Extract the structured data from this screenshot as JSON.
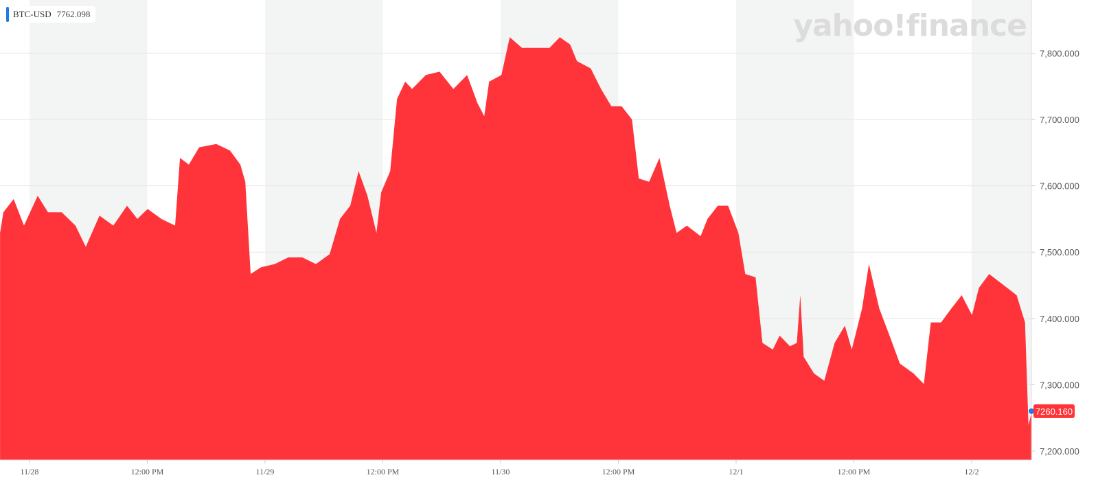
{
  "legend": {
    "symbol": "BTC-USD",
    "value": "7762.098",
    "color": "#1b7ae6"
  },
  "watermark": "yahoo!finance",
  "chart_data": {
    "type": "area",
    "title": "",
    "xlabel": "",
    "ylabel": "",
    "ylim": [
      7190,
      7880
    ],
    "y_axis_position": "right",
    "yticks": [
      7200,
      7300,
      7400,
      7500,
      7600,
      7700,
      7800
    ],
    "ytick_labels": [
      "7,200.000",
      "7,300.000",
      "7,400.000",
      "7,500.000",
      "7,600.000",
      "7,700.000",
      "7,800.000"
    ],
    "xticks": [
      "2019-11-28T00:00",
      "2019-11-28T12:00",
      "2019-11-29T00:00",
      "2019-11-29T12:00",
      "2019-11-30T00:00",
      "2019-11-30T12:00",
      "2019-12-01T00:00",
      "2019-12-01T12:00",
      "2019-12-02T00:00"
    ],
    "xtick_labels": [
      "11/28",
      "12:00 PM",
      "11/29",
      "12:00 PM",
      "11/30",
      "12:00 PM",
      "12/1",
      "12:00 PM",
      "12/2"
    ],
    "grid": true,
    "fill_color": "#ff333a",
    "last_price_label": "7260.160",
    "last_price": 7260.16,
    "series": [
      {
        "x": [
          "2019-11-27T21:00",
          "2019-11-27T21:20",
          "2019-11-27T22:23",
          "2019-11-27T23:26",
          "2019-11-28T00:50",
          "2019-11-28T01:53",
          "2019-11-28T03:17",
          "2019-11-28T04:41",
          "2019-11-28T05:44",
          "2019-11-28T07:08",
          "2019-11-28T08:32",
          "2019-11-28T09:56",
          "2019-11-28T10:59",
          "2019-11-28T12:02",
          "2019-11-28T13:26",
          "2019-11-28T14:50",
          "2019-11-28T15:20",
          "2019-11-28T16:14",
          "2019-11-28T17:17",
          "2019-11-28T19:02",
          "2019-11-28T20:26",
          "2019-11-28T21:29",
          "2019-11-28T21:59",
          "2019-11-28T22:32",
          "2019-11-28T23:35",
          "2019-11-29T00:59",
          "2019-11-29T02:23",
          "2019-11-29T03:47",
          "2019-11-29T05:11",
          "2019-11-29T06:35",
          "2019-11-29T07:38",
          "2019-11-29T08:41",
          "2019-11-29T09:32",
          "2019-11-29T10:26",
          "2019-11-29T11:21",
          "2019-11-29T11:50",
          "2019-11-29T12:45",
          "2019-11-29T13:27",
          "2019-11-29T14:17",
          "2019-11-29T14:59",
          "2019-11-29T16:23",
          "2019-11-29T17:47",
          "2019-11-29T19:11",
          "2019-11-29T20:35",
          "2019-11-29T21:38",
          "2019-11-29T22:20",
          "2019-11-29T22:50",
          "2019-11-30T00:05",
          "2019-11-30T00:56",
          "2019-11-30T02:11",
          "2019-11-30T03:35",
          "2019-11-30T04:59",
          "2019-11-30T06:02",
          "2019-11-30T07:05",
          "2019-11-30T07:47",
          "2019-11-30T09:11",
          "2019-11-30T10:14",
          "2019-11-30T11:17",
          "2019-11-30T12:20",
          "2019-11-30T13:23",
          "2019-11-30T14:05",
          "2019-11-30T15:08",
          "2019-11-30T16:11",
          "2019-11-30T17:14",
          "2019-11-30T17:56",
          "2019-11-30T18:59",
          "2019-11-30T20:23",
          "2019-11-30T21:05",
          "2019-11-30T22:08",
          "2019-11-30T23:11",
          "2019-12-01T00:14",
          "2019-12-01T00:56",
          "2019-12-01T01:59",
          "2019-12-01T02:41",
          "2019-12-01T03:44",
          "2019-12-01T04:26",
          "2019-12-01T05:29",
          "2019-12-01T06:11",
          "2019-12-01T06:32",
          "2019-12-01T06:53",
          "2019-12-01T07:56",
          "2019-12-01T08:59",
          "2019-12-01T10:02",
          "2019-12-01T11:05",
          "2019-12-01T11:47",
          "2019-12-01T12:50",
          "2019-12-01T13:32",
          "2019-12-01T14:35",
          "2019-12-01T15:38",
          "2019-12-01T16:41",
          "2019-12-01T18:05",
          "2019-12-01T19:08",
          "2019-12-01T19:50",
          "2019-12-01T20:53",
          "2019-12-01T21:56",
          "2019-12-01T22:59",
          "2019-12-02T00:02",
          "2019-12-02T00:44",
          "2019-12-02T01:47",
          "2019-12-02T03:11",
          "2019-12-02T04:35",
          "2019-12-02T05:26",
          "2019-12-02T05:47",
          "2019-12-02T06:08"
        ],
        "y": [
          7529,
          7560,
          7580,
          7540,
          7585,
          7560,
          7560,
          7540,
          7508,
          7555,
          7540,
          7570,
          7550,
          7565,
          7550,
          7540,
          7642,
          7632,
          7658,
          7663,
          7653,
          7632,
          7606,
          7467,
          7477,
          7482,
          7492,
          7492,
          7482,
          7497,
          7550,
          7570,
          7622,
          7585,
          7529,
          7590,
          7622,
          7731,
          7757,
          7746,
          7767,
          7772,
          7746,
          7767,
          7725,
          7705,
          7757,
          7767,
          7824,
          7808,
          7808,
          7808,
          7824,
          7813,
          7788,
          7777,
          7746,
          7720,
          7720,
          7700,
          7611,
          7606,
          7642,
          7570,
          7529,
          7540,
          7524,
          7550,
          7570,
          7570,
          7529,
          7467,
          7462,
          7363,
          7353,
          7374,
          7358,
          7363,
          7435,
          7342,
          7317,
          7306,
          7363,
          7389,
          7353,
          7415,
          7482,
          7415,
          7374,
          7332,
          7317,
          7301,
          7394,
          7394,
          7415,
          7435,
          7405,
          7446,
          7467,
          7451,
          7435,
          7394,
          7239,
          7260
        ]
      }
    ]
  }
}
